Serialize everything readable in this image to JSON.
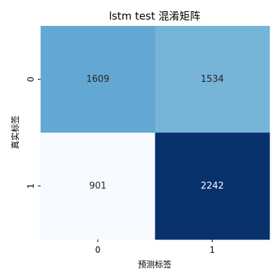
{
  "chart_data": {
    "type": "heatmap",
    "title": "lstm test 混淆矩阵",
    "xlabel": "预测标签",
    "ylabel": "真实标签",
    "x_categories": [
      "0",
      "1"
    ],
    "y_categories": [
      "0",
      "1"
    ],
    "values": [
      [
        1609,
        1534
      ],
      [
        901,
        2242
      ]
    ],
    "colormap": "Blues",
    "color_range": [
      901,
      2242
    ],
    "colorbar": false,
    "annotations": true,
    "grid": false
  }
}
